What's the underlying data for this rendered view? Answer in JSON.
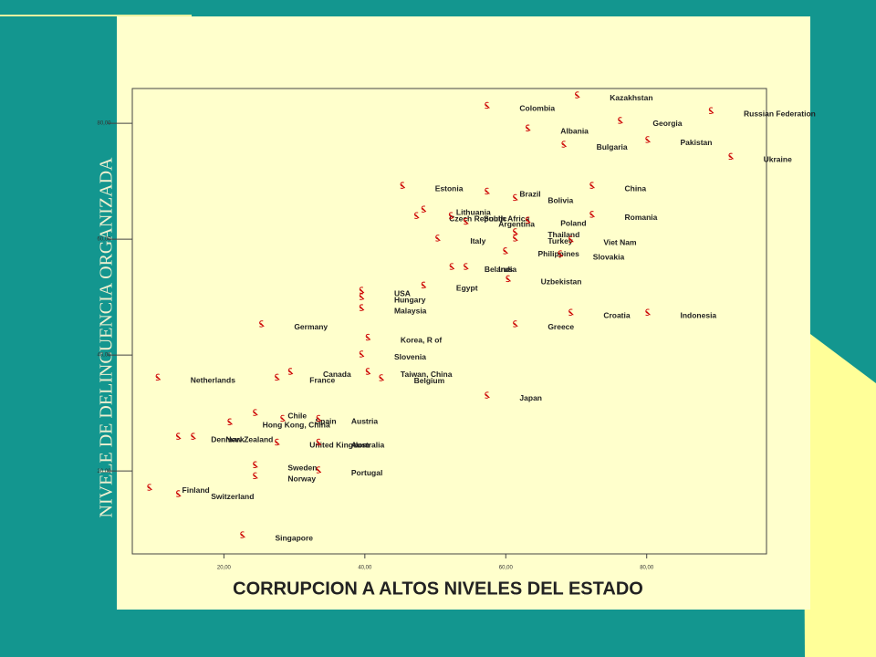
{
  "chart_data": {
    "type": "scatter",
    "x_label": "CORRUPCION A ALTOS NIVELES DEL ESTADO",
    "y_label": "NIVELE DE DELINCUENCIA ORGANIZADA",
    "color": "#cc0000",
    "xlim": [
      7,
      97
    ],
    "ylim": [
      5.7,
      86
    ],
    "xticks": [
      {
        "value": 20,
        "label": "20,00"
      },
      {
        "value": 40,
        "label": "40,00"
      },
      {
        "value": 60,
        "label": "60,00"
      },
      {
        "value": 80,
        "label": "80,00"
      }
    ],
    "yticks": [
      {
        "value": 20,
        "label": "20,00"
      },
      {
        "value": 40,
        "label": "40,00"
      },
      {
        "value": 60,
        "label": "60,00"
      },
      {
        "value": 80,
        "label": "80,00"
      }
    ],
    "point_labels": [
      "Colombia",
      "Kazakhstan",
      "Russian Federation",
      "Georgia",
      "Albania",
      "Pakistan",
      "Bulgaria",
      "Ukraine",
      "Estonia",
      "China",
      "Brazil",
      "Bolivia",
      "Lithuania",
      "Czech Republic",
      "South Africa",
      "Romania",
      "Argentina",
      "Poland",
      "Thailand",
      "Turkey",
      "Viet Nam",
      "Italy",
      "Philippines",
      "Slovakia",
      "Belarus",
      "India",
      "Uzbekistan",
      "Egypt",
      "USA",
      "Hungary",
      "Malaysia",
      "Croatia",
      "Indonesia",
      "Germany",
      "Greece",
      "Korea, R of",
      "Slovenia",
      "Canada",
      "Netherlands",
      "France",
      "Taiwan, China",
      "Belgium",
      "Japan",
      "Chile",
      "Spain",
      "Hong Kong, China",
      "Austria",
      "Denmark",
      "New Zealand",
      "United Kingdom",
      "Australia",
      "Sweden",
      "Norway",
      "Portugal",
      "Finland",
      "Switzerland",
      "Singapore"
    ],
    "x": [
      57.3,
      70.1,
      89.1,
      76.2,
      63.1,
      80.1,
      68.2,
      91.9,
      45.3,
      72.2,
      57.3,
      61.3,
      48.3,
      47.3,
      52.2,
      72.2,
      54.3,
      63.1,
      61.3,
      61.3,
      69.2,
      50.3,
      59.9,
      67.7,
      52.3,
      54.3,
      60.3,
      48.3,
      39.5,
      39.5,
      39.5,
      69.2,
      80.1,
      25.3,
      61.3,
      40.4,
      39.5,
      29.4,
      10.6,
      27.5,
      40.4,
      42.3,
      57.3,
      24.4,
      28.3,
      20.8,
      33.4,
      13.5,
      15.6,
      27.5,
      33.4,
      24.4,
      24.4,
      33.4,
      9.4,
      13.5,
      22.6
    ],
    "values": [
      83.1,
      84.9,
      82.2,
      80.5,
      79.2,
      77.2,
      76.4,
      74.3,
      69.3,
      69.3,
      68.3,
      67.2,
      65.2,
      64.1,
      64.1,
      64.3,
      63.1,
      63.3,
      61.3,
      60.2,
      60.0,
      60.2,
      58.0,
      57.5,
      55.3,
      55.3,
      53.2,
      52.1,
      51.2,
      50.1,
      48.2,
      47.4,
      47.4,
      45.4,
      45.4,
      43.1,
      40.2,
      37.2,
      36.2,
      36.2,
      37.2,
      36.1,
      33.1,
      30.1,
      29.1,
      28.5,
      29.1,
      26.0,
      26.0,
      25.0,
      25.0,
      21.1,
      19.2,
      20.2,
      17.2,
      16.1,
      9.0
    ]
  }
}
